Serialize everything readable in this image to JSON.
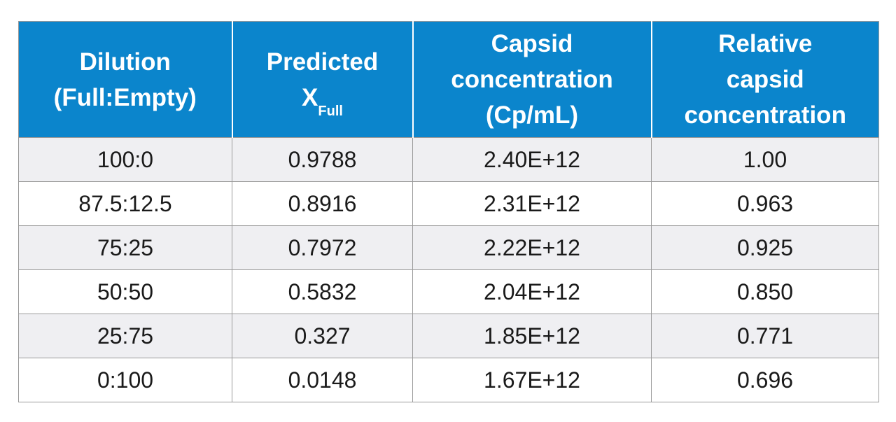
{
  "table": {
    "headers": [
      {
        "lines": [
          "Dilution",
          "(Full:Empty)"
        ]
      },
      {
        "lines": [
          "Predicted",
          "X"
        ],
        "subscript": "Full"
      },
      {
        "lines": [
          "Capsid",
          "concentration",
          "(Cp/mL)"
        ]
      },
      {
        "lines": [
          "Relative",
          "capsid",
          "concentration"
        ]
      }
    ],
    "rows": [
      [
        "100:0",
        "0.9788",
        "2.40E+12",
        "1.00"
      ],
      [
        "87.5:12.5",
        "0.8916",
        "2.31E+12",
        "0.963"
      ],
      [
        "75:25",
        "0.7972",
        "2.22E+12",
        "0.925"
      ],
      [
        "50:50",
        "0.5832",
        "2.04E+12",
        "0.850"
      ],
      [
        "25:75",
        "0.327",
        "1.85E+12",
        "0.771"
      ],
      [
        "0:100",
        "0.0148",
        "1.67E+12",
        "0.696"
      ]
    ]
  },
  "colors": {
    "header_bg": "#0b85cc",
    "header_text": "#ffffff",
    "row_alt_bg": "#efeff2",
    "border": "#9a9a9a"
  }
}
